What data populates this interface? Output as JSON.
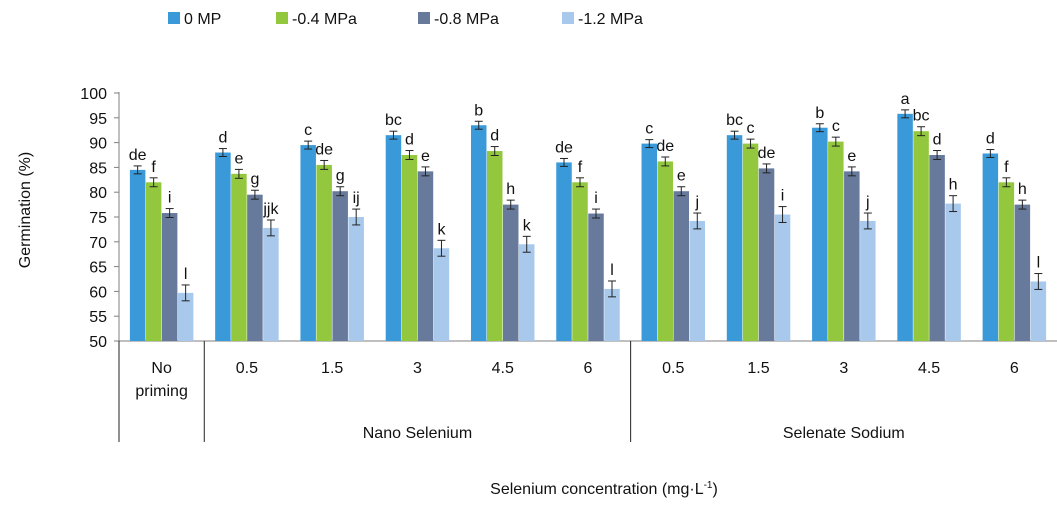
{
  "chart_data": {
    "type": "bar",
    "ylabel": "Germination (%)",
    "xlabel": "Selenium concentration (mg·L⁻¹)",
    "xlabel_parts": {
      "main": "Selenium concentration (mg·L",
      "sup": "-1",
      "close": ")"
    },
    "ylim": [
      50,
      100
    ],
    "yticks": [
      50,
      55,
      60,
      65,
      70,
      75,
      80,
      85,
      90,
      95,
      100
    ],
    "legend_position": "top",
    "grid": false,
    "groups": [
      {
        "label": "",
        "categories": [
          [
            "No",
            "priming"
          ]
        ]
      },
      {
        "label": "Nano Selenium",
        "categories": [
          [
            "0.5"
          ],
          [
            "1.5"
          ],
          [
            "3"
          ],
          [
            "4.5"
          ],
          [
            "6"
          ]
        ]
      },
      {
        "label": "Selenate Sodium",
        "categories": [
          [
            "0.5"
          ],
          [
            "1.5"
          ],
          [
            "3"
          ],
          [
            "4.5"
          ],
          [
            "6"
          ]
        ]
      }
    ],
    "series": [
      {
        "name": "0 MP",
        "color": "#3a9ad9",
        "values": [
          84.5,
          88,
          89.5,
          91.5,
          93.5,
          86,
          89.8,
          91.5,
          93,
          95.8,
          87.8
        ],
        "errors": [
          0.8,
          0.8,
          0.8,
          0.8,
          0.8,
          0.8,
          0.8,
          0.8,
          0.8,
          0.8,
          0.8
        ],
        "letters": [
          "de",
          "d",
          "c",
          "bc",
          "b",
          "de",
          "c",
          "bc",
          "b",
          "a",
          "d"
        ]
      },
      {
        "name": "-0.4 MPa",
        "color": "#93c83e",
        "values": [
          82,
          83.7,
          85.5,
          87.5,
          88.3,
          82,
          86.2,
          89.8,
          90.2,
          92.3,
          82
        ],
        "errors": [
          0.9,
          0.9,
          0.9,
          0.9,
          0.9,
          0.9,
          0.9,
          0.9,
          0.9,
          0.9,
          0.9
        ],
        "letters": [
          "f",
          "e",
          "de",
          "d",
          "d",
          "f",
          "de",
          "c",
          "c",
          "bc",
          "f"
        ]
      },
      {
        "name": "-0.8 MPa",
        "color": "#677a9c",
        "values": [
          75.8,
          79.5,
          80.2,
          84.2,
          77.5,
          75.7,
          80.2,
          84.8,
          84.2,
          87.5,
          77.5
        ],
        "errors": [
          0.9,
          0.9,
          0.9,
          0.9,
          0.9,
          0.9,
          0.9,
          0.9,
          0.9,
          0.9,
          0.9
        ],
        "letters": [
          "i",
          "g",
          "g",
          "e",
          "h",
          "i",
          "e",
          "de",
          "e",
          "d",
          "h"
        ]
      },
      {
        "name": "-1.2 MPa",
        "color": "#a8c9ec",
        "values": [
          59.7,
          72.8,
          75,
          68.7,
          69.5,
          60.5,
          74.2,
          75.5,
          74.2,
          77.7,
          62
        ],
        "errors": [
          1.6,
          1.6,
          1.6,
          1.6,
          1.6,
          1.6,
          1.6,
          1.6,
          1.6,
          1.6,
          1.6
        ],
        "letters": [
          "l",
          "jjk",
          "ij",
          "k",
          "k",
          "l",
          "j",
          "i",
          "j",
          "h",
          "l"
        ]
      }
    ]
  }
}
